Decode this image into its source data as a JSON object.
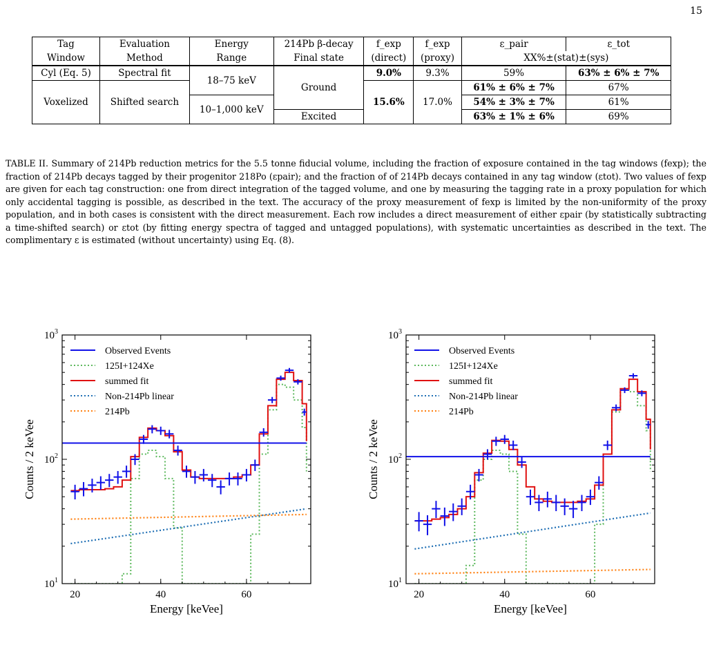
{
  "page_number": "15",
  "table": {
    "headers_row1": [
      "Tag",
      "Evaluation",
      "Energy",
      "214Pb β-decay",
      "f_exp",
      "f_exp",
      "ε_pair",
      "ε_tot"
    ],
    "headers_row2": [
      "Window",
      "Method",
      "Range",
      "Final state",
      "(direct)",
      "(proxy)",
      "XX%±(stat)±(sys)"
    ],
    "rows": [
      {
        "window": "Cyl (Eq. 5)",
        "method": "Spectral fit",
        "range": "18–75 keV",
        "state": "Ground",
        "fexp_direct": "9.0%",
        "fexp_proxy": "9.3%",
        "eps_pair": "59%",
        "eps_tot": "63% ± 6% ± 7%"
      },
      {
        "window": "Voxelized",
        "method": "Shifted search",
        "range": "10–1,000 keV",
        "state": "Ground",
        "fexp_direct": "15.6%",
        "fexp_proxy": "17.0%",
        "eps_pair": "61% ± 6% ± 7%",
        "eps_tot": "67%"
      },
      {
        "window": "Voxelized",
        "method": "Shifted search",
        "range": "10–1,000 keV",
        "state": "",
        "fexp_direct": "15.6%",
        "fexp_proxy": "17.0%",
        "eps_pair": "54% ± 3% ± 7%",
        "eps_tot": "61%"
      },
      {
        "window": "Voxelized",
        "method": "Shifted search",
        "range": "10–1,000 keV",
        "state": "Excited",
        "fexp_direct": "15.6%",
        "fexp_proxy": "17.0%",
        "eps_pair": "63% ± 1% ± 6%",
        "eps_tot": "69%"
      }
    ]
  },
  "caption": {
    "label": "TABLE II.",
    "text": "Summary of 214Pb reduction metrics for the 5.5 tonne fiducial volume, including the fraction of exposure contained in the tag windows (fexp); the fraction of 214Pb decays tagged by their progenitor 218Po (εpair); and the fraction of of 214Pb decays contained in any tag window (εtot). Two values of fexp are given for each tag construction: one from direct integration of the tagged volume, and one by measuring the tagging rate in a proxy population for which only accidental tagging is possible, as described in the text. The accuracy of the proxy measurement of fexp is limited by the non-uniformity of the proxy population, and in both cases is consistent with the direct measurement. Each row includes a direct measurement of either εpair (by statistically subtracting a time-shifted search) or εtot (by fitting energy spectra of tagged and untagged populations), with systematic uncertainties as described in the text. The complimentary ε is estimated (without uncertainty) using Eq. (8)."
  },
  "chart_data": [
    {
      "type": "line",
      "xlabel": "Energy [keVee]",
      "ylabel": "Counts / 2 keVee",
      "xlim": [
        17,
        75
      ],
      "ylim": [
        10,
        1000
      ],
      "yscale": "log",
      "xticks": [
        "20",
        "40",
        "60"
      ],
      "yticks": [
        "10^1",
        "10^2",
        "10^3"
      ],
      "legend_position": "top-left",
      "legend": [
        "Observed Events",
        "125I+124Xe",
        "summed fit",
        "Non-214Pb linear",
        "214Pb"
      ],
      "colors": {
        "observed": "#1010e8",
        "iodine": "#5cb85c",
        "fit": "#e01010",
        "linear": "#1f6fb4",
        "pb": "#ff7f0e"
      },
      "bin_edges": [
        19,
        21,
        23,
        25,
        27,
        29,
        31,
        33,
        35,
        37,
        39,
        41,
        43,
        45,
        47,
        49,
        51,
        53,
        55,
        57,
        59,
        61,
        63,
        65,
        67,
        69,
        71,
        73,
        74
      ],
      "observed": [
        55,
        58,
        62,
        65,
        68,
        72,
        80,
        100,
        145,
        175,
        170,
        160,
        118,
        80,
        72,
        75,
        68,
        60,
        70,
        70,
        75,
        90,
        165,
        300,
        450,
        520,
        420,
        240,
        135
      ],
      "summed_fit": [
        56,
        57,
        57,
        57,
        58,
        60,
        68,
        105,
        150,
        178,
        170,
        155,
        115,
        82,
        72,
        70,
        70,
        70,
        70,
        72,
        75,
        90,
        160,
        270,
        440,
        500,
        430,
        280,
        140
      ],
      "iodine_xe": [
        1,
        1,
        1,
        1,
        1,
        1,
        12,
        70,
        110,
        118,
        105,
        70,
        28,
        7,
        1,
        1,
        1,
        1,
        1,
        1,
        4,
        25,
        110,
        250,
        400,
        380,
        300,
        180,
        80
      ],
      "linear_start_end": [
        21,
        40
      ],
      "pb_level": [
        33,
        36
      ]
    },
    {
      "type": "line",
      "xlabel": "Energy [keVee]",
      "ylabel": "Counts / 2 keVee",
      "xlim": [
        17,
        75
      ],
      "ylim": [
        10,
        1000
      ],
      "yscale": "log",
      "xticks": [
        "20",
        "40",
        "60"
      ],
      "yticks": [
        "10^1",
        "10^2",
        "10^3"
      ],
      "legend_position": "top-left",
      "legend": [
        "Observed Events",
        "125I+124Xe",
        "summed fit",
        "Non-214Pb linear",
        "214Pb"
      ],
      "colors": {
        "observed": "#1010e8",
        "iodine": "#5cb85c",
        "fit": "#e01010",
        "linear": "#1f6fb4",
        "pb": "#ff7f0e"
      },
      "bin_edges": [
        19,
        21,
        23,
        25,
        27,
        29,
        31,
        33,
        35,
        37,
        39,
        41,
        43,
        45,
        47,
        49,
        51,
        53,
        55,
        57,
        59,
        61,
        63,
        65,
        67,
        69,
        71,
        73,
        74
      ],
      "observed": [
        32,
        30,
        40,
        35,
        38,
        42,
        55,
        75,
        110,
        140,
        145,
        130,
        95,
        50,
        45,
        48,
        45,
        42,
        40,
        45,
        50,
        65,
        130,
        260,
        360,
        470,
        340,
        190,
        105
      ],
      "summed_fit": [
        32,
        32,
        33,
        34,
        36,
        40,
        50,
        78,
        112,
        142,
        140,
        120,
        90,
        60,
        48,
        46,
        45,
        45,
        45,
        46,
        48,
        62,
        110,
        250,
        370,
        440,
        350,
        210,
        120
      ],
      "iodine_xe": [
        1,
        1,
        1,
        1,
        1,
        1,
        14,
        68,
        100,
        118,
        110,
        80,
        25,
        6,
        1,
        1,
        1,
        1,
        1,
        1,
        5,
        30,
        110,
        240,
        360,
        350,
        270,
        170,
        80
      ],
      "linear_start_end": [
        19,
        37
      ],
      "pb_level": [
        12,
        13
      ]
    }
  ]
}
